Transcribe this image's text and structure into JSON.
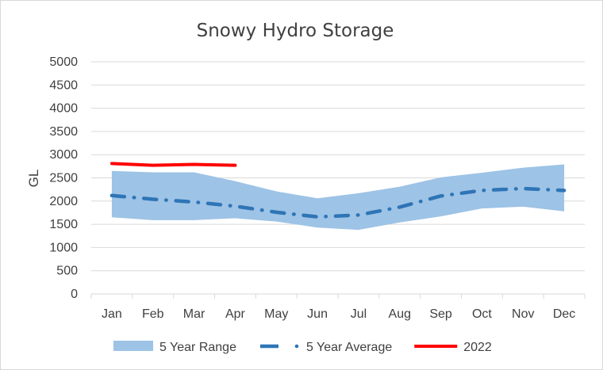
{
  "chart_data": {
    "type": "area",
    "title": "Snowy Hydro Storage",
    "ylabel": "GL",
    "xlabel": "",
    "ylim": [
      0,
      5000
    ],
    "yticks": [
      0,
      500,
      1000,
      1500,
      2000,
      2500,
      3000,
      3500,
      4000,
      4500,
      5000
    ],
    "categories": [
      "Jan",
      "Feb",
      "Mar",
      "Apr",
      "May",
      "Jun",
      "Jul",
      "Aug",
      "Sep",
      "Oct",
      "Nov",
      "Dec"
    ],
    "grid": true,
    "legend_position": "bottom",
    "series": [
      {
        "name": "5 Year Range",
        "kind": "band",
        "color": "#9dc3e6",
        "lower": [
          1650,
          1590,
          1590,
          1630,
          1560,
          1430,
          1380,
          1540,
          1670,
          1840,
          1880,
          1780
        ],
        "upper": [
          2650,
          2620,
          2620,
          2430,
          2210,
          2060,
          2170,
          2310,
          2510,
          2610,
          2720,
          2790
        ]
      },
      {
        "name": "5 Year Average",
        "kind": "line",
        "style": "dash-dot",
        "color": "#2e75b6",
        "values": [
          2120,
          2040,
          1980,
          1890,
          1760,
          1660,
          1700,
          1870,
          2110,
          2230,
          2270,
          2230
        ]
      },
      {
        "name": "2022",
        "kind": "line",
        "style": "solid",
        "color": "#ff0000",
        "values": [
          2810,
          2770,
          2790,
          2770,
          null,
          null,
          null,
          null,
          null,
          null,
          null,
          null
        ]
      }
    ]
  }
}
